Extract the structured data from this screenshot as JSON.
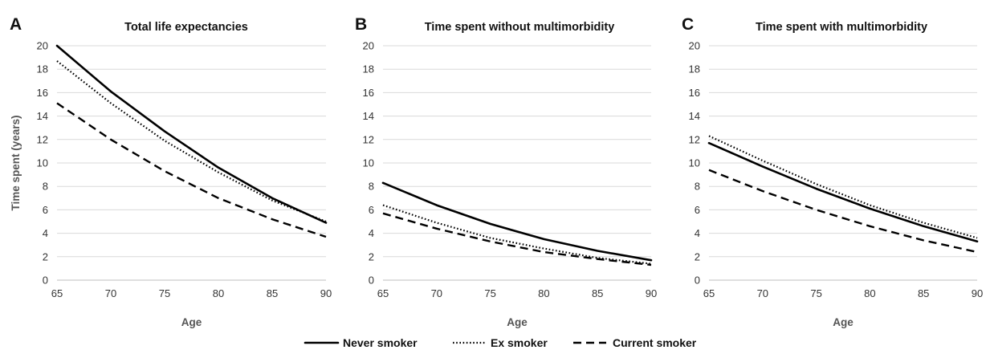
{
  "chart_data": [
    {
      "type": "line",
      "panel": "A",
      "title": "Total life expectancies",
      "xlabel": "Age",
      "ylabel": "Time spent (years)",
      "x": [
        65,
        70,
        75,
        80,
        85,
        90
      ],
      "xlim": [
        65,
        90
      ],
      "ylim": [
        0,
        20
      ],
      "xticks": [
        65,
        70,
        75,
        80,
        85,
        90
      ],
      "yticks": [
        0,
        2,
        4,
        6,
        8,
        10,
        12,
        14,
        16,
        18,
        20
      ],
      "grid": true,
      "series": [
        {
          "name": "Never smoker",
          "style": "solid",
          "values": [
            20.0,
            16.1,
            12.7,
            9.6,
            7.0,
            4.9
          ]
        },
        {
          "name": "Ex smoker",
          "style": "dotted",
          "values": [
            18.7,
            15.1,
            11.9,
            9.2,
            6.8,
            5.0
          ]
        },
        {
          "name": "Current smoker",
          "style": "dashed",
          "values": [
            15.1,
            12.0,
            9.3,
            7.0,
            5.2,
            3.7
          ]
        }
      ]
    },
    {
      "type": "line",
      "panel": "B",
      "title": "Time spent without multimorbidity",
      "xlabel": "Age",
      "ylabel": "",
      "x": [
        65,
        70,
        75,
        80,
        85,
        90
      ],
      "xlim": [
        65,
        90
      ],
      "ylim": [
        0,
        20
      ],
      "xticks": [
        65,
        70,
        75,
        80,
        85,
        90
      ],
      "yticks": [
        0,
        2,
        4,
        6,
        8,
        10,
        12,
        14,
        16,
        18,
        20
      ],
      "grid": true,
      "series": [
        {
          "name": "Never smoker",
          "style": "solid",
          "values": [
            8.3,
            6.4,
            4.8,
            3.5,
            2.5,
            1.7
          ]
        },
        {
          "name": "Ex smoker",
          "style": "dotted",
          "values": [
            6.4,
            4.9,
            3.6,
            2.7,
            1.9,
            1.4
          ]
        },
        {
          "name": "Current smoker",
          "style": "dashed",
          "values": [
            5.7,
            4.4,
            3.3,
            2.4,
            1.8,
            1.3
          ]
        }
      ]
    },
    {
      "type": "line",
      "panel": "C",
      "title": "Time spent with multimorbidity",
      "xlabel": "Age",
      "ylabel": "",
      "x": [
        65,
        70,
        75,
        80,
        85,
        90
      ],
      "xlim": [
        65,
        90
      ],
      "ylim": [
        0,
        20
      ],
      "xticks": [
        65,
        70,
        75,
        80,
        85,
        90
      ],
      "yticks": [
        0,
        2,
        4,
        6,
        8,
        10,
        12,
        14,
        16,
        18,
        20
      ],
      "grid": true,
      "series": [
        {
          "name": "Never smoker",
          "style": "solid",
          "values": [
            11.7,
            9.7,
            7.8,
            6.1,
            4.6,
            3.3
          ]
        },
        {
          "name": "Ex smoker",
          "style": "dotted",
          "values": [
            12.3,
            10.2,
            8.2,
            6.4,
            4.9,
            3.6
          ]
        },
        {
          "name": "Current smoker",
          "style": "dashed",
          "values": [
            9.4,
            7.6,
            6.0,
            4.6,
            3.4,
            2.4
          ]
        }
      ]
    }
  ],
  "legend": {
    "placement": "bottom-center",
    "items": [
      {
        "label": "Never smoker",
        "style": "solid"
      },
      {
        "label": "Ex smoker",
        "style": "dotted"
      },
      {
        "label": "Current smoker",
        "style": "dashed"
      }
    ]
  }
}
